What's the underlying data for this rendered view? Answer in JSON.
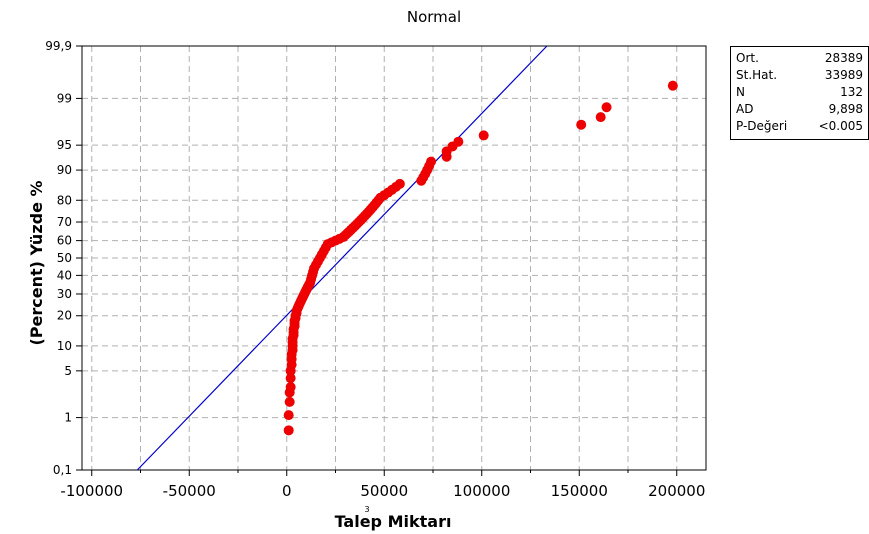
{
  "chart_data": {
    "type": "scatter",
    "title": "Normal",
    "xlabel": "Talep Miktarı",
    "ylabel": "(Percent) Yüzde %",
    "x_scale_marker": "3",
    "xlim": [
      -105000,
      215000
    ],
    "ylim": [
      0.1,
      99.9
    ],
    "y_scale": "normal-probability",
    "x_ticks": [
      -100000,
      -50000,
      0,
      50000,
      100000,
      150000,
      200000
    ],
    "x_tick_labels": [
      "-100000",
      "-50000",
      "0",
      "50000",
      "100000",
      "150000",
      "200000"
    ],
    "y_ticks": [
      0.1,
      1,
      5,
      10,
      20,
      30,
      40,
      50,
      60,
      70,
      80,
      90,
      95,
      99,
      99.9
    ],
    "y_tick_labels": [
      "0,1",
      "1",
      "5",
      "10",
      "20",
      "30",
      "40",
      "50",
      "60",
      "70",
      "80",
      "90",
      "95",
      "99",
      "99,9"
    ],
    "grid": true,
    "legend": "right",
    "fit_line": {
      "mean": 28389,
      "stdev": 33989
    },
    "colors": {
      "points": "#ee0000",
      "fit_line": "#0000cc",
      "grid": "#b0b0b0"
    },
    "points": [
      {
        "x": 1000,
        "y": 0.6
      },
      {
        "x": 1000,
        "y": 1.1
      },
      {
        "x": 1500,
        "y": 1.8
      },
      {
        "x": 1500,
        "y": 2.5
      },
      {
        "x": 2000,
        "y": 3
      },
      {
        "x": 2000,
        "y": 4
      },
      {
        "x": 2000,
        "y": 5
      },
      {
        "x": 2500,
        "y": 6
      },
      {
        "x": 2500,
        "y": 7
      },
      {
        "x": 2500,
        "y": 8
      },
      {
        "x": 3000,
        "y": 9
      },
      {
        "x": 3000,
        "y": 10
      },
      {
        "x": 3000,
        "y": 11
      },
      {
        "x": 3000,
        "y": 12
      },
      {
        "x": 3500,
        "y": 13
      },
      {
        "x": 3500,
        "y": 14
      },
      {
        "x": 3500,
        "y": 15
      },
      {
        "x": 4000,
        "y": 16
      },
      {
        "x": 4000,
        "y": 17
      },
      {
        "x": 4000,
        "y": 18
      },
      {
        "x": 4500,
        "y": 19
      },
      {
        "x": 4500,
        "y": 20
      },
      {
        "x": 5000,
        "y": 21
      },
      {
        "x": 5000,
        "y": 22
      },
      {
        "x": 5500,
        "y": 23
      },
      {
        "x": 6000,
        "y": 24
      },
      {
        "x": 6500,
        "y": 25
      },
      {
        "x": 7000,
        "y": 26
      },
      {
        "x": 7500,
        "y": 27
      },
      {
        "x": 8000,
        "y": 28
      },
      {
        "x": 8500,
        "y": 29
      },
      {
        "x": 9000,
        "y": 30
      },
      {
        "x": 9500,
        "y": 31
      },
      {
        "x": 10000,
        "y": 32
      },
      {
        "x": 10500,
        "y": 33
      },
      {
        "x": 11000,
        "y": 34
      },
      {
        "x": 11500,
        "y": 35
      },
      {
        "x": 12000,
        "y": 36
      },
      {
        "x": 12500,
        "y": 38
      },
      {
        "x": 13000,
        "y": 40
      },
      {
        "x": 13500,
        "y": 42
      },
      {
        "x": 14000,
        "y": 44
      },
      {
        "x": 15000,
        "y": 46
      },
      {
        "x": 16000,
        "y": 48
      },
      {
        "x": 17000,
        "y": 50
      },
      {
        "x": 18000,
        "y": 52
      },
      {
        "x": 19000,
        "y": 54
      },
      {
        "x": 20000,
        "y": 56
      },
      {
        "x": 21000,
        "y": 58
      },
      {
        "x": 23000,
        "y": 59
      },
      {
        "x": 25000,
        "y": 60
      },
      {
        "x": 27000,
        "y": 61
      },
      {
        "x": 29000,
        "y": 62
      },
      {
        "x": 30000,
        "y": 63
      },
      {
        "x": 31000,
        "y": 64
      },
      {
        "x": 32000,
        "y": 65
      },
      {
        "x": 33000,
        "y": 66
      },
      {
        "x": 34000,
        "y": 67
      },
      {
        "x": 35000,
        "y": 68
      },
      {
        "x": 36000,
        "y": 69
      },
      {
        "x": 37000,
        "y": 70
      },
      {
        "x": 38000,
        "y": 71
      },
      {
        "x": 39000,
        "y": 72
      },
      {
        "x": 40000,
        "y": 73
      },
      {
        "x": 41000,
        "y": 74
      },
      {
        "x": 42000,
        "y": 75
      },
      {
        "x": 43000,
        "y": 76
      },
      {
        "x": 44000,
        "y": 77
      },
      {
        "x": 45000,
        "y": 78
      },
      {
        "x": 46000,
        "y": 79
      },
      {
        "x": 47000,
        "y": 80
      },
      {
        "x": 48000,
        "y": 81
      },
      {
        "x": 50000,
        "y": 82
      },
      {
        "x": 52000,
        "y": 83
      },
      {
        "x": 54000,
        "y": 84
      },
      {
        "x": 56000,
        "y": 85
      },
      {
        "x": 58000,
        "y": 86
      },
      {
        "x": 69000,
        "y": 87
      },
      {
        "x": 70000,
        "y": 88
      },
      {
        "x": 71000,
        "y": 89
      },
      {
        "x": 72000,
        "y": 90
      },
      {
        "x": 73000,
        "y": 91
      },
      {
        "x": 74000,
        "y": 92
      },
      {
        "x": 82000,
        "y": 93
      },
      {
        "x": 82000,
        "y": 94
      },
      {
        "x": 85000,
        "y": 94.8
      },
      {
        "x": 88000,
        "y": 95.5
      },
      {
        "x": 101000,
        "y": 96.3
      },
      {
        "x": 151000,
        "y": 97.4
      },
      {
        "x": 161000,
        "y": 98
      },
      {
        "x": 164000,
        "y": 98.6
      },
      {
        "x": 198000,
        "y": 99.4
      }
    ]
  },
  "stats": [
    {
      "label": "Ort.",
      "value": "28389"
    },
    {
      "label": "St.Hat.",
      "value": "33989"
    },
    {
      "label": "N",
      "value": "132"
    },
    {
      "label": "AD",
      "value": "9,898"
    },
    {
      "label": "P-Değeri",
      "value": "<0.005"
    }
  ]
}
